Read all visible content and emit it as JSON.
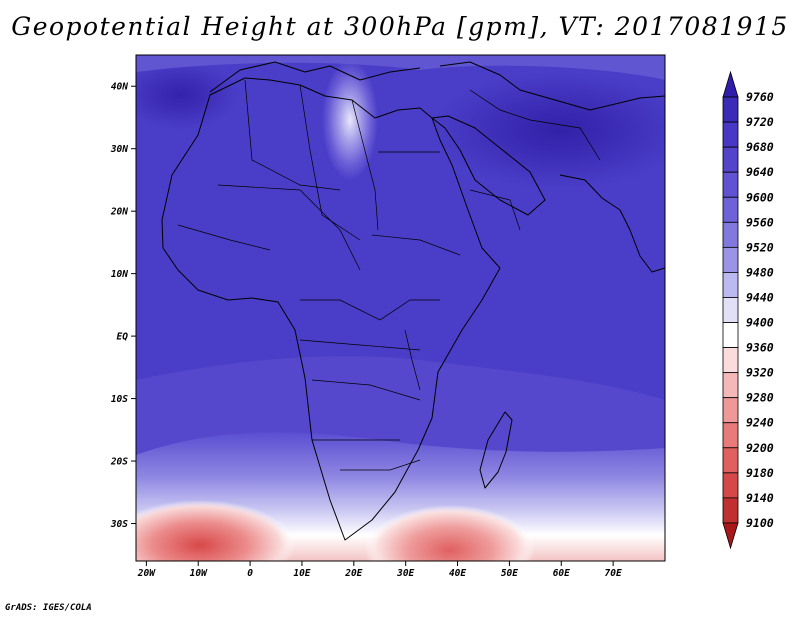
{
  "title": "Geopotential Height at 300hPa [gpm], VT: 2017081915",
  "credit": "GrADS: IGES/COLA",
  "map": {
    "x_ticks": [
      {
        "lon": -20,
        "label": "20W"
      },
      {
        "lon": -10,
        "label": "10W"
      },
      {
        "lon": 0,
        "label": "0"
      },
      {
        "lon": 10,
        "label": "10E"
      },
      {
        "lon": 20,
        "label": "20E"
      },
      {
        "lon": 30,
        "label": "30E"
      },
      {
        "lon": 40,
        "label": "40E"
      },
      {
        "lon": 50,
        "label": "50E"
      },
      {
        "lon": 60,
        "label": "60E"
      },
      {
        "lon": 70,
        "label": "70E"
      }
    ],
    "y_ticks": [
      {
        "lat": 40,
        "label": "40N"
      },
      {
        "lat": 30,
        "label": "30N"
      },
      {
        "lat": 20,
        "label": "20N"
      },
      {
        "lat": 10,
        "label": "10N"
      },
      {
        "lat": 0,
        "label": "EQ"
      },
      {
        "lat": -10,
        "label": "10S"
      },
      {
        "lat": -20,
        "label": "20S"
      },
      {
        "lat": -30,
        "label": "30S"
      }
    ],
    "lon_range": [
      -22,
      80
    ],
    "lat_range": [
      -36,
      45
    ]
  },
  "colorbar": {
    "levels": [
      "9760",
      "9720",
      "9680",
      "9640",
      "9600",
      "9560",
      "9520",
      "9480",
      "9440",
      "9400",
      "9360",
      "9320",
      "9280",
      "9240",
      "9200",
      "9180",
      "9140",
      "9100"
    ],
    "colors": [
      "#2f1eab",
      "#3b2cb8",
      "#4838c5",
      "#5444cc",
      "#6052d2",
      "#6e62d8",
      "#8179de",
      "#9a93e6",
      "#bcb8f0",
      "#e2e0f7",
      "#ffffff",
      "#fbdcdc",
      "#f5b8b8",
      "#ef9898",
      "#e87a7a",
      "#e06060",
      "#d44848",
      "#c03030",
      "#a81818"
    ]
  }
}
